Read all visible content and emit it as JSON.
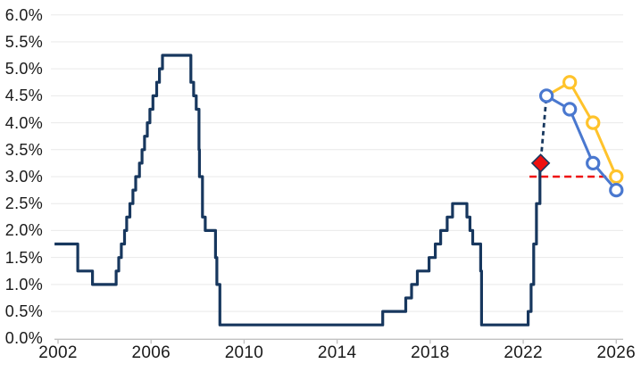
{
  "colors": {
    "history_navy": "#17375e",
    "projection_blue": "#4a78cf",
    "projection_yellow": "#ffc32b",
    "reference_red": "#ee1010",
    "gridline": "#e9e9e9",
    "axis": "#c2c2c2",
    "label_text": "#1a1a1a",
    "marker_fill": "#ffffff"
  },
  "chart_data": {
    "type": "line",
    "title": "",
    "legend": "none",
    "grid": "horizontal-only",
    "y_axis": {
      "min": 0,
      "max": 6,
      "step": 0.5,
      "unit": "%",
      "ticks": [
        {
          "label": "6.0%",
          "value": 6.0
        },
        {
          "label": "5.5%",
          "value": 5.5
        },
        {
          "label": "5.0%",
          "value": 5.0
        },
        {
          "label": "4.5%",
          "value": 4.5
        },
        {
          "label": "4.0%",
          "value": 4.0
        },
        {
          "label": "3.5%",
          "value": 3.5
        },
        {
          "label": "3.0%",
          "value": 3.0
        },
        {
          "label": "2.5%",
          "value": 2.5
        },
        {
          "label": "2.0%",
          "value": 2.0
        },
        {
          "label": "1.5%",
          "value": 1.5
        },
        {
          "label": "1.0%",
          "value": 1.0
        },
        {
          "label": "0.5%",
          "value": 0.5
        },
        {
          "label": "0.0%",
          "value": 0.0
        }
      ]
    },
    "x_axis": {
      "min": 2001.7,
      "max": 2026.4,
      "ticks": [
        {
          "label": "2002",
          "value": 2002
        },
        {
          "label": "2006",
          "value": 2006
        },
        {
          "label": "2010",
          "value": 2010
        },
        {
          "label": "2014",
          "value": 2014
        },
        {
          "label": "2018",
          "value": 2018
        },
        {
          "label": "2022",
          "value": 2022
        },
        {
          "label": "2026",
          "value": 2026
        }
      ]
    },
    "series": [
      {
        "name": "reference-line-3pct",
        "type": "line",
        "style": "dashed",
        "dash": "8 5",
        "width": 2.6,
        "color": "reference_red",
        "points": [
          [
            2022.27,
            3.0
          ],
          [
            2025.64,
            3.0
          ]
        ]
      },
      {
        "name": "history-to-projection-connector",
        "type": "line",
        "style": "dashed",
        "dash": "5 4",
        "width": 2.8,
        "color": "history_navy",
        "points": [
          [
            2022.76,
            3.32
          ],
          [
            2023.0,
            4.5
          ]
        ]
      },
      {
        "name": "projection-yellow",
        "type": "line",
        "style": "solid",
        "width": 3,
        "color": "projection_yellow",
        "marker_shape": "open-circle",
        "points": [
          [
            2023.0,
            4.5
          ],
          [
            2024.0,
            4.75
          ],
          [
            2025.0,
            4.0
          ],
          [
            2026.0,
            3.0
          ]
        ],
        "markers": [
          [
            2024.0,
            4.75
          ],
          [
            2025.0,
            4.0
          ],
          [
            2026.0,
            3.0
          ]
        ]
      },
      {
        "name": "projection-blue",
        "type": "line",
        "style": "solid",
        "width": 3,
        "color": "projection_blue",
        "marker_shape": "open-circle",
        "points": [
          [
            2023.0,
            4.5
          ],
          [
            2024.0,
            4.25
          ],
          [
            2025.0,
            3.25
          ],
          [
            2026.0,
            2.75
          ]
        ],
        "markers": [
          [
            2023.0,
            4.5
          ],
          [
            2024.0,
            4.25
          ],
          [
            2025.0,
            3.25
          ],
          [
            2026.0,
            2.75
          ]
        ]
      },
      {
        "name": "policy-rate-history",
        "type": "step",
        "style": "solid",
        "width": 3.2,
        "color": "history_navy",
        "points": [
          [
            2001.85,
            1.75
          ],
          [
            2002.85,
            1.25
          ],
          [
            2003.48,
            1.0
          ],
          [
            2004.5,
            1.25
          ],
          [
            2004.61,
            1.5
          ],
          [
            2004.72,
            1.75
          ],
          [
            2004.86,
            2.0
          ],
          [
            2004.95,
            2.25
          ],
          [
            2005.09,
            2.5
          ],
          [
            2005.22,
            2.75
          ],
          [
            2005.34,
            3.0
          ],
          [
            2005.5,
            3.25
          ],
          [
            2005.61,
            3.5
          ],
          [
            2005.72,
            3.75
          ],
          [
            2005.84,
            4.0
          ],
          [
            2005.95,
            4.25
          ],
          [
            2006.08,
            4.5
          ],
          [
            2006.24,
            4.75
          ],
          [
            2006.36,
            5.0
          ],
          [
            2006.49,
            5.25
          ],
          [
            2007.71,
            4.75
          ],
          [
            2007.83,
            4.5
          ],
          [
            2007.94,
            4.25
          ],
          [
            2008.06,
            3.5
          ],
          [
            2008.08,
            3.0
          ],
          [
            2008.21,
            2.25
          ],
          [
            2008.33,
            2.0
          ],
          [
            2008.77,
            1.5
          ],
          [
            2008.83,
            1.0
          ],
          [
            2008.96,
            0.25
          ],
          [
            2015.96,
            0.5
          ],
          [
            2016.95,
            0.75
          ],
          [
            2017.2,
            1.0
          ],
          [
            2017.45,
            1.25
          ],
          [
            2017.95,
            1.5
          ],
          [
            2018.22,
            1.75
          ],
          [
            2018.45,
            2.0
          ],
          [
            2018.73,
            2.25
          ],
          [
            2018.96,
            2.5
          ],
          [
            2019.58,
            2.25
          ],
          [
            2019.71,
            2.0
          ],
          [
            2019.83,
            1.75
          ],
          [
            2020.17,
            1.25
          ],
          [
            2020.21,
            0.25
          ],
          [
            2022.21,
            0.5
          ],
          [
            2022.34,
            1.0
          ],
          [
            2022.45,
            1.75
          ],
          [
            2022.57,
            2.5
          ],
          [
            2022.72,
            3.25
          ],
          [
            2022.78,
            3.25
          ]
        ]
      },
      {
        "name": "current-rate-marker",
        "type": "scatter",
        "marker_shape": "diamond",
        "color": "reference_red",
        "outline_color": "history_navy",
        "points": [
          [
            2022.75,
            3.25
          ]
        ]
      }
    ]
  }
}
